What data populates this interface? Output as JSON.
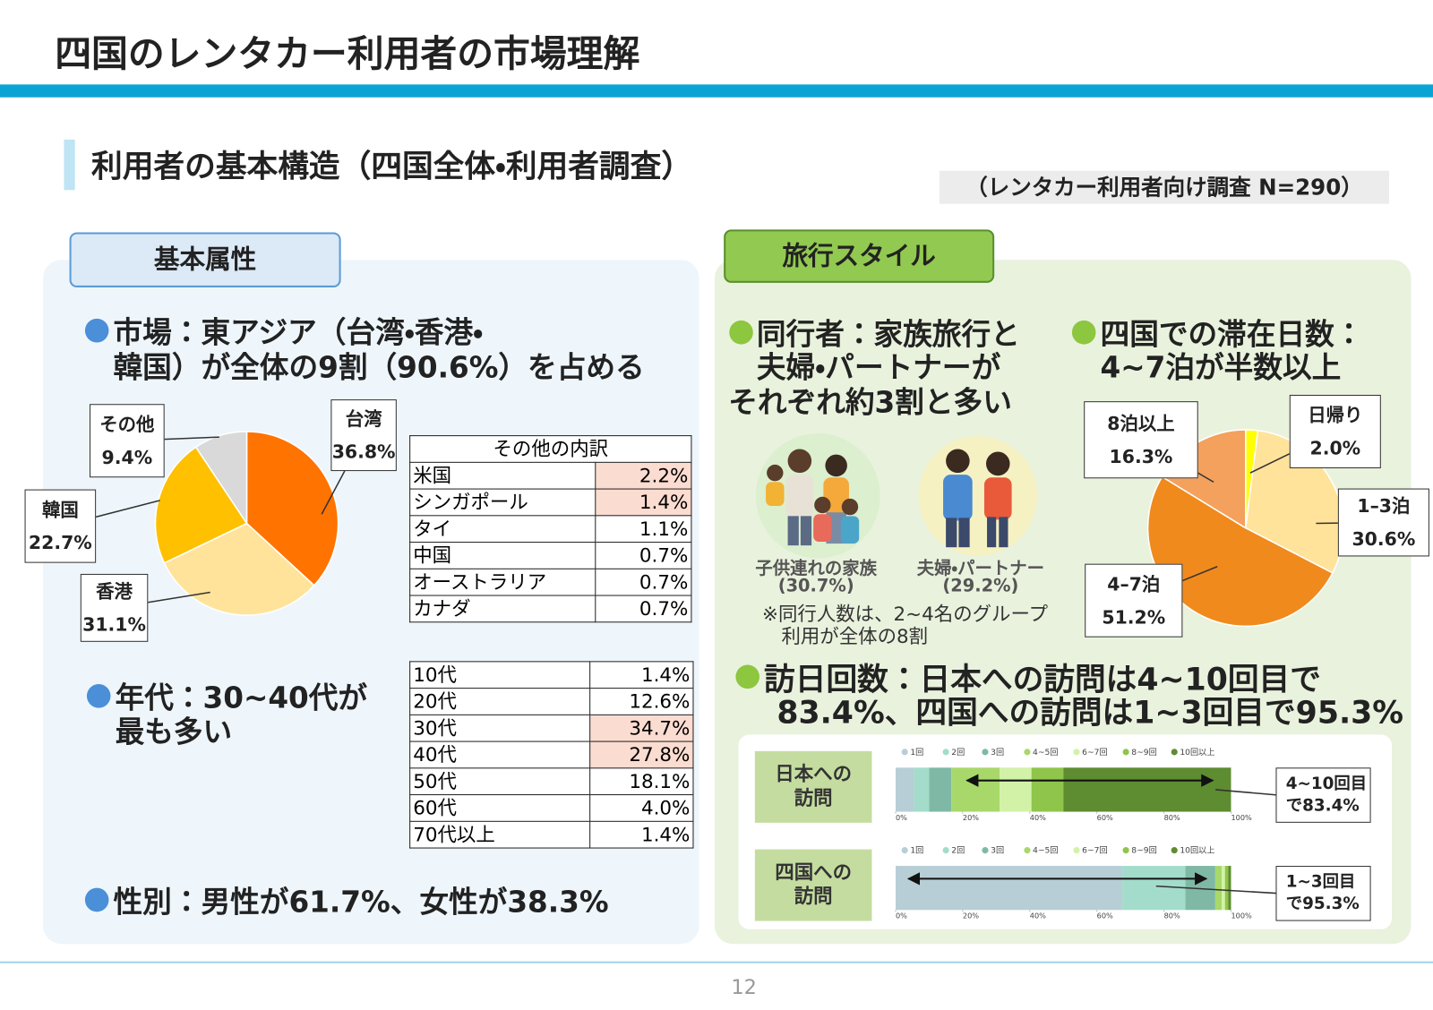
{
  "header": {
    "title": "四国のレンタカー利用者の市場理解",
    "page_number": "12"
  },
  "section": {
    "title": "利用者の基本構造（四国全体・利用者調査）",
    "note": "（レンタカー利用者向け調査 N=290）"
  },
  "left_panel": {
    "tab": "基本属性",
    "market_text": [
      "市場：東アジア（台湾・香港・",
      "韓国）が全体の9割（90.6%）を占める"
    ],
    "other_table": {
      "title": "その他の内訳",
      "rows": [
        [
          "米国",
          "2.2%"
        ],
        [
          "シンガポール",
          "1.4%"
        ],
        [
          "タイ",
          "1.1%"
        ],
        [
          "中国",
          "0.7%"
        ],
        [
          "オーストラリア",
          "0.7%"
        ],
        [
          "カナダ",
          "0.7%"
        ]
      ]
    },
    "age_text": [
      "年代：30~40代が",
      "最も多い"
    ],
    "age_table": {
      "rows": [
        [
          "10代",
          "1.4%"
        ],
        [
          "20代",
          "12.6%"
        ],
        [
          "30代",
          "34.7%"
        ],
        [
          "40代",
          "27.8%"
        ],
        [
          "50代",
          "18.1%"
        ],
        [
          "60代",
          "4.0%"
        ],
        [
          "70代以上",
          "1.4%"
        ]
      ]
    },
    "gender_text": "性別：男性が61.7%、女性が38.3%"
  },
  "right_panel": {
    "tab": "旅行スタイル",
    "companion_text": [
      "同行者：家族旅行と",
      "夫婦・パートナーが",
      "それぞれ約3割と多い"
    ],
    "companions": [
      {
        "label": "子供連れの家族",
        "share": "(30.7%)"
      },
      {
        "label": "夫婦・パートナー",
        "share": "(29.2%)"
      }
    ],
    "companion_note": [
      "※同行人数は、2~4名のグループ",
      "利用が全体の8割"
    ],
    "stay_text": [
      "四国での滞在日数：",
      "4~7泊が半数以上"
    ],
    "visit_text": [
      "訪日回数：日本への訪問は4~10回目で",
      "83.4%、四国への訪問は1~3回目で95.3%"
    ]
  },
  "chart_data": [
    {
      "type": "pie",
      "categories": [
        "台湾",
        "香港",
        "韓国",
        "その他"
      ],
      "values": [
        36.8,
        31.1,
        22.7,
        9.4
      ],
      "value_labels": [
        "36.8%",
        "31.1%",
        "22.7%",
        "9.4%"
      ],
      "colors": [
        "#ff7300",
        "#ffe39a",
        "#ffc000",
        "#d9d9d9"
      ]
    },
    {
      "type": "pie",
      "categories": [
        "日帰り",
        "1–3泊",
        "4–7泊",
        "8泊以上"
      ],
      "values": [
        2.0,
        30.6,
        51.2,
        16.3
      ],
      "value_labels": [
        "2.0%",
        "30.6%",
        "51.2%",
        "16.3%"
      ],
      "colors": [
        "#ffff00",
        "#ffe39a",
        "#f08a1d",
        "#f4a15d"
      ]
    },
    {
      "type": "bar",
      "orientation": "horizontal",
      "stacked": true,
      "categories": [
        "日本への訪問"
      ],
      "annotation": [
        "4~10回目",
        "で83.4%"
      ],
      "xlim": [
        0,
        100
      ],
      "xticks": [
        {
          "value": 0,
          "label": "0%"
        },
        {
          "value": 20,
          "label": "20%"
        },
        {
          "value": 40,
          "label": "40%"
        },
        {
          "value": 60,
          "label": "60%"
        },
        {
          "value": 80,
          "label": "80%"
        },
        {
          "value": 100,
          "label": "100%"
        }
      ],
      "series": [
        {
          "name": "1回",
          "color": "#b8ced6",
          "values": [
            5.5
          ]
        },
        {
          "name": "2回",
          "color": "#a3dccb",
          "values": [
            4.5
          ]
        },
        {
          "name": "3回",
          "color": "#7fb9a5",
          "values": [
            6.6
          ]
        },
        {
          "name": "4~5回",
          "color": "#a8d86a",
          "values": [
            14.4
          ]
        },
        {
          "name": "6~7回",
          "color": "#d2f2a8",
          "values": [
            9.5
          ]
        },
        {
          "name": "8~9回",
          "color": "#8fc54a",
          "values": [
            9.5
          ]
        },
        {
          "name": "10回以上",
          "color": "#5e8c31",
          "values": [
            50.0
          ]
        }
      ]
    },
    {
      "type": "bar",
      "orientation": "horizontal",
      "stacked": true,
      "categories": [
        "四国への訪問"
      ],
      "annotation": [
        "1~3回目",
        "で95.3%"
      ],
      "xlim": [
        0,
        100
      ],
      "xticks": [
        {
          "value": 0,
          "label": "0%"
        },
        {
          "value": 20,
          "label": "20%"
        },
        {
          "value": 40,
          "label": "40%"
        },
        {
          "value": 60,
          "label": "60%"
        },
        {
          "value": 80,
          "label": "80%"
        },
        {
          "value": 100,
          "label": "100%"
        }
      ],
      "series": [
        {
          "name": "1回",
          "color": "#b8ced6",
          "values": [
            67.6
          ]
        },
        {
          "name": "2回",
          "color": "#a3dccb",
          "values": [
            18.8
          ]
        },
        {
          "name": "3回",
          "color": "#7fb9a5",
          "values": [
            8.9
          ]
        },
        {
          "name": "4~5回",
          "color": "#a8d86a",
          "values": [
            1.9
          ]
        },
        {
          "name": "6~7回",
          "color": "#d2f2a8",
          "values": [
            1.0
          ]
        },
        {
          "name": "8~9回",
          "color": "#8fc54a",
          "values": [
            1.0
          ]
        },
        {
          "name": "10回以上",
          "color": "#5e8c31",
          "values": [
            0.8
          ]
        }
      ]
    }
  ]
}
